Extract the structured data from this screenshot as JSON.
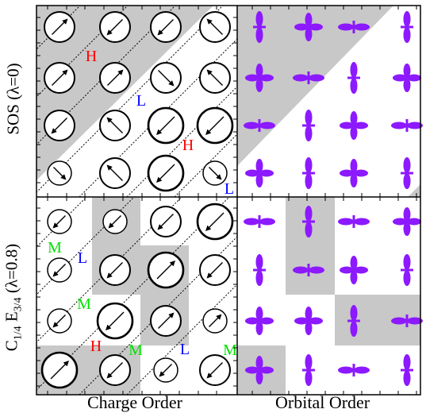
{
  "axis_labels": {
    "x_left": "Charge Order",
    "x_right": "Orbital Order",
    "y_top_prefix": "SOS (",
    "y_top_lambda": "λ",
    "y_top_suffix": "=0)",
    "y_bottom_c": "C",
    "y_bottom_c_sub": "1/4",
    "y_bottom_e": "E",
    "y_bottom_e_sub": "3/4",
    "y_bottom_lambda": "(λ=0.8)"
  },
  "colors": {
    "shade": "#c8c8c8",
    "orbital": "#8c19ff",
    "label_H": "#ff0000",
    "label_L": "#0000ff",
    "label_M": "#00e000"
  },
  "panels": {
    "top_left": {
      "shading": "upper-left-triangle",
      "arrows": [
        [
          "ne",
          "sw",
          "sw",
          "nw"
        ],
        [
          "ne",
          "ne",
          "se",
          "nw"
        ],
        [
          "sw",
          "nw",
          "sw",
          "sw"
        ],
        [
          "se",
          "nw",
          "sw",
          "se"
        ]
      ],
      "circle_size": [
        [
          "m",
          "m",
          "m",
          "m"
        ],
        [
          "m",
          "m",
          "m",
          "m"
        ],
        [
          "m",
          "m",
          "l",
          "l"
        ],
        [
          "s",
          "m",
          "l",
          "s"
        ]
      ],
      "labels": [
        {
          "text": "H",
          "kind": "H"
        },
        {
          "text": "L",
          "kind": "L"
        },
        {
          "text": "H",
          "kind": "H"
        },
        {
          "text": "L",
          "kind": "L"
        }
      ]
    },
    "bottom_left": {
      "shaded_cells": [
        [
          1,
          0
        ],
        [
          1,
          1
        ],
        [
          2,
          1
        ],
        [
          2,
          2
        ],
        [
          0,
          3
        ],
        [
          1,
          3
        ]
      ],
      "arrows": [
        [
          "sw",
          "sw",
          "sw",
          "sw"
        ],
        [
          "sw",
          "sw",
          "ne",
          "sw"
        ],
        [
          "sw",
          "sw",
          "ne",
          "ne"
        ],
        [
          "ne",
          "sw",
          "sw",
          "sw"
        ]
      ],
      "circle_size": [
        [
          "s",
          "s",
          "m",
          "l"
        ],
        [
          "s",
          "m",
          "l",
          "m"
        ],
        [
          "s",
          "l",
          "m",
          "s"
        ],
        [
          "l",
          "m",
          "s",
          "m"
        ]
      ],
      "labels": [
        {
          "text": "M",
          "kind": "M"
        },
        {
          "text": "L",
          "kind": "L"
        },
        {
          "text": "M",
          "kind": "M"
        },
        {
          "text": "H",
          "kind": "H"
        },
        {
          "text": "M",
          "kind": "M"
        },
        {
          "text": "L",
          "kind": "L"
        },
        {
          "text": "M",
          "kind": "M"
        }
      ]
    },
    "top_right": {
      "shading": "upper-left-triangle",
      "orbitals": [
        [
          "v",
          "c",
          "h",
          "v"
        ],
        [
          "c",
          "h",
          "v",
          "c"
        ],
        [
          "h",
          "v",
          "c",
          "h"
        ],
        [
          "c",
          "v",
          "c",
          "v"
        ]
      ]
    },
    "bottom_right": {
      "shaded_cells": [
        [
          1,
          0
        ],
        [
          1,
          1
        ],
        [
          2,
          2
        ],
        [
          3,
          2
        ],
        [
          0,
          3
        ]
      ],
      "orbitals": [
        [
          "h",
          "v",
          "h",
          "c"
        ],
        [
          "v",
          "h",
          "c",
          "v"
        ],
        [
          "c",
          "c",
          "v",
          "h"
        ],
        [
          "c",
          "v",
          "h",
          "v"
        ]
      ]
    }
  }
}
